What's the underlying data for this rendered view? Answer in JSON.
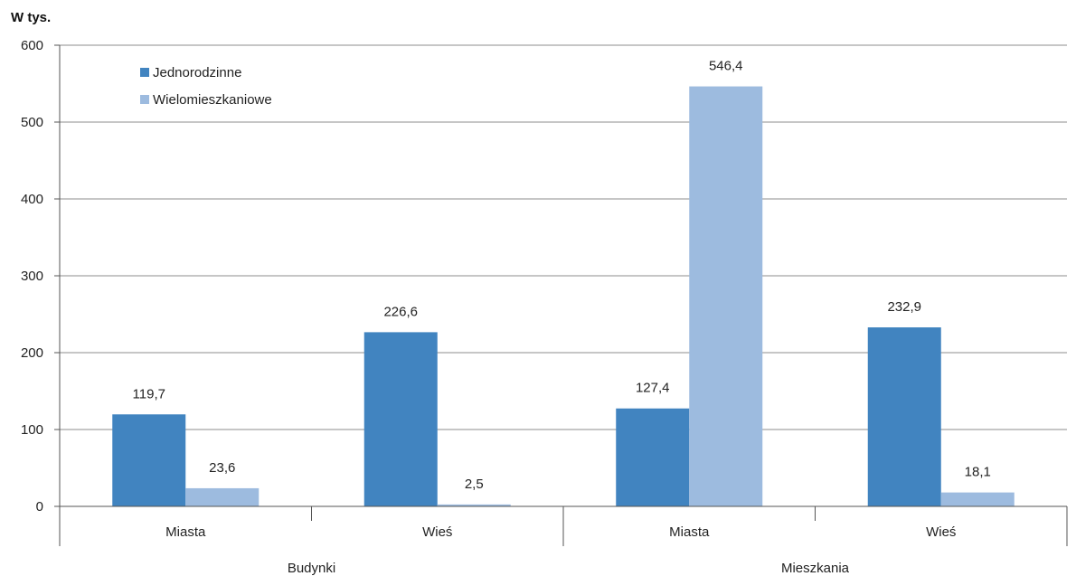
{
  "chart_data": {
    "type": "bar",
    "unit_label": "W tys.",
    "ylim": [
      0,
      600
    ],
    "yticks": [
      0,
      100,
      200,
      300,
      400,
      500,
      600
    ],
    "grid": true,
    "legend_position": "top-left",
    "groups": [
      {
        "name": "Budynki",
        "categories": [
          "Miasta",
          "Wieś"
        ]
      },
      {
        "name": "Mieszkania",
        "categories": [
          "Miasta",
          "Wieś"
        ]
      }
    ],
    "categories": [
      "Miasta",
      "Wieś",
      "Miasta",
      "Wieś"
    ],
    "series": [
      {
        "name": "Jednorodzinne",
        "color": "#4184c0",
        "values": [
          119.7,
          226.6,
          127.4,
          232.9
        ],
        "labels": [
          "119,7",
          "226,6",
          "127,4",
          "232,9"
        ]
      },
      {
        "name": "Wielomieszkaniowe",
        "color": "#9dbbdf",
        "values": [
          23.6,
          2.5,
          546.4,
          18.1
        ],
        "labels": [
          "23,6",
          "2,5",
          "546,4",
          "18,1"
        ]
      }
    ]
  }
}
